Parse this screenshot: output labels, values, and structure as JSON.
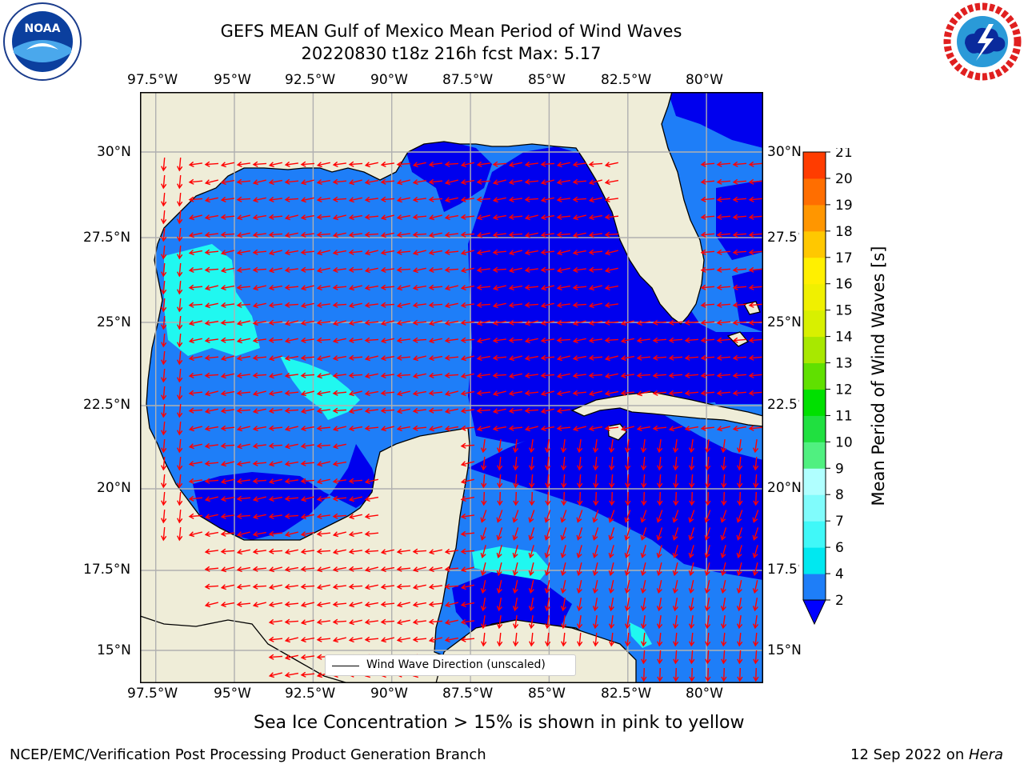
{
  "title": {
    "line1": "GEFS MEAN Gulf of Mexico Mean Period of Wind Waves",
    "line2": "20220830 t18z 216h fcst   Max: 5.17"
  },
  "axes": {
    "lon_ticks": [
      "97.5°W",
      "95°W",
      "92.5°W",
      "90°W",
      "87.5°W",
      "85°W",
      "82.5°W",
      "80°W"
    ],
    "lat_ticks": [
      "30°N",
      "27.5°N",
      "25°N",
      "22.5°N",
      "20°N",
      "17.5°N",
      "15°N"
    ],
    "lon_range": [
      -98,
      -78.2
    ],
    "lat_range": [
      14,
      31.6
    ]
  },
  "legend": {
    "label": "Wind Wave Direction (unscaled)"
  },
  "colorbar": {
    "label": "Mean Period of Wind Waves [s]",
    "ticks": [
      "2",
      "4",
      "6",
      "7",
      "8",
      "9",
      "10",
      "11",
      "12",
      "13",
      "14",
      "15",
      "16",
      "17",
      "18",
      "19",
      "20",
      "21"
    ],
    "colors": [
      "#1e7ef8",
      "#00e8f0",
      "#40f8f8",
      "#80fcfc",
      "#b0ffff",
      "#50f080",
      "#20e040",
      "#00e000",
      "#60e000",
      "#a8e800",
      "#d8f000",
      "#f0f000",
      "#fff000",
      "#ffc800",
      "#ff9600",
      "#ff6e00",
      "#ff3c00",
      "#ff0000"
    ],
    "min_arrow_color": "#0000ff"
  },
  "caption": "Sea Ice Concentration > 15% is shown in pink to yellow",
  "footer": {
    "left": "NCEP/EMC/Verification Post Processing Product Generation Branch",
    "right_date": "12 Sep 2022 on ",
    "right_host": "Hera"
  },
  "logos": {
    "noaa": "NOAA",
    "noaa_ring": "NATIONAL OCEANIC AND ATMOSPHERIC ADMINISTRATION · U.S. DEPARTMENT OF COMMERCE",
    "nws_ring": "NATIONAL WEATHER SERVICE"
  },
  "colors": {
    "land": "#efedd8",
    "water_low": "#1e7ef8",
    "water_mid": "#0000ee",
    "water_high": "#20f8f0",
    "arrow": "#ff0000",
    "grid": "#b0b0b0"
  }
}
